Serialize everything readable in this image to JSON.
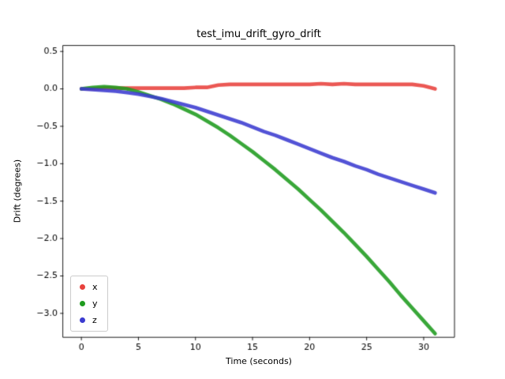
{
  "chart_data": {
    "type": "scatter",
    "title": "test_imu_drift_gyro_drift",
    "xlabel": "Time (seconds)",
    "ylabel": "Drift (degrees)",
    "xlim": [
      -1.6,
      32.7
    ],
    "ylim": [
      -3.32,
      0.58
    ],
    "xticks": [
      0,
      5,
      10,
      15,
      20,
      25,
      30
    ],
    "yticks": [
      0.5,
      0.0,
      -0.5,
      -1.0,
      -1.5,
      -2.0,
      -2.5,
      -3.0
    ],
    "grid": false,
    "legend_position": "lower left",
    "x": [
      0,
      1,
      2,
      3,
      4,
      5,
      6,
      7,
      8,
      9,
      10,
      11,
      12,
      13,
      14,
      15,
      16,
      17,
      18,
      19,
      20,
      21,
      22,
      23,
      24,
      25,
      26,
      27,
      28,
      29,
      30,
      31
    ],
    "series": [
      {
        "name": "x",
        "color": "#e8413c",
        "values": [
          0.0,
          0.0,
          0.01,
          0.01,
          0.01,
          0.01,
          0.01,
          0.01,
          0.01,
          0.01,
          0.02,
          0.02,
          0.05,
          0.06,
          0.06,
          0.06,
          0.06,
          0.06,
          0.06,
          0.06,
          0.06,
          0.07,
          0.06,
          0.07,
          0.06,
          0.06,
          0.06,
          0.06,
          0.06,
          0.06,
          0.04,
          0.0
        ]
      },
      {
        "name": "y",
        "color": "#1e9b1e",
        "values": [
          0.0,
          0.02,
          0.03,
          0.02,
          0.0,
          -0.04,
          -0.09,
          -0.14,
          -0.2,
          -0.27,
          -0.34,
          -0.43,
          -0.52,
          -0.62,
          -0.73,
          -0.84,
          -0.96,
          -1.08,
          -1.21,
          -1.34,
          -1.48,
          -1.62,
          -1.77,
          -1.92,
          -2.08,
          -2.24,
          -2.41,
          -2.58,
          -2.76,
          -2.93,
          -3.1,
          -3.27
        ]
      },
      {
        "name": "z",
        "color": "#3b3bd0",
        "values": [
          0.0,
          -0.01,
          -0.02,
          -0.03,
          -0.05,
          -0.07,
          -0.1,
          -0.13,
          -0.17,
          -0.21,
          -0.25,
          -0.3,
          -0.35,
          -0.4,
          -0.45,
          -0.51,
          -0.57,
          -0.62,
          -0.68,
          -0.74,
          -0.8,
          -0.86,
          -0.92,
          -0.97,
          -1.03,
          -1.08,
          -1.14,
          -1.19,
          -1.24,
          -1.29,
          -1.34,
          -1.39
        ]
      }
    ]
  }
}
